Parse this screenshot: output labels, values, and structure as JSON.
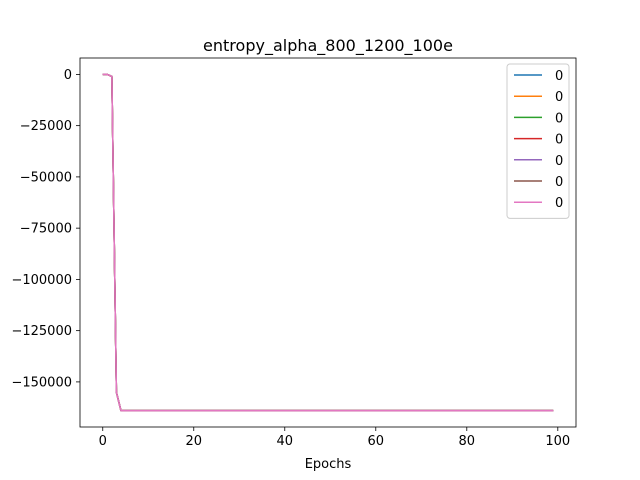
{
  "chart_data": {
    "type": "line",
    "title": "entropy_alpha_800_1200_100e",
    "xlabel": "Epochs",
    "ylabel": "",
    "xlim": [
      -5,
      104
    ],
    "ylim": [
      -172000,
      8000
    ],
    "xticks": [
      0,
      20,
      40,
      60,
      80,
      100
    ],
    "yticks": [
      0,
      -25000,
      -50000,
      -75000,
      -100000,
      -125000,
      -150000
    ],
    "ytick_labels": [
      "0",
      "−25000",
      "−50000",
      "−75000",
      "−100000",
      "−125000",
      "−150000"
    ],
    "legend_position": "top-right",
    "grid": false,
    "series": [
      {
        "name": "0",
        "color": "#1f77b4",
        "x": [
          0,
          1,
          2,
          3,
          4,
          99
        ],
        "y": [
          0,
          0,
          -1000,
          -155000,
          -164000,
          -164000
        ]
      },
      {
        "name": "0",
        "color": "#ff7f0e",
        "x": [
          0,
          1,
          2,
          3,
          4,
          99
        ],
        "y": [
          0,
          0,
          -1000,
          -155000,
          -164000,
          -164000
        ]
      },
      {
        "name": "0",
        "color": "#2ca02c",
        "x": [
          0,
          1,
          2,
          3,
          4,
          99
        ],
        "y": [
          0,
          0,
          -1000,
          -155000,
          -164000,
          -164000
        ]
      },
      {
        "name": "0",
        "color": "#d62728",
        "x": [
          0,
          1,
          2,
          3,
          4,
          99
        ],
        "y": [
          0,
          0,
          -1000,
          -155000,
          -164000,
          -164000
        ]
      },
      {
        "name": "0",
        "color": "#9467bd",
        "x": [
          0,
          1,
          2,
          3,
          4,
          99
        ],
        "y": [
          0,
          0,
          -1000,
          -155000,
          -164000,
          -164000
        ]
      },
      {
        "name": "0",
        "color": "#8c564b",
        "x": [
          0,
          1,
          2,
          3,
          4,
          99
        ],
        "y": [
          0,
          0,
          -1000,
          -155000,
          -164000,
          -164000
        ]
      },
      {
        "name": "0",
        "color": "#e377c2",
        "x": [
          0,
          1,
          2,
          3,
          4,
          99
        ],
        "y": [
          0,
          0,
          -1000,
          -155000,
          -164000,
          -164000
        ]
      }
    ]
  }
}
